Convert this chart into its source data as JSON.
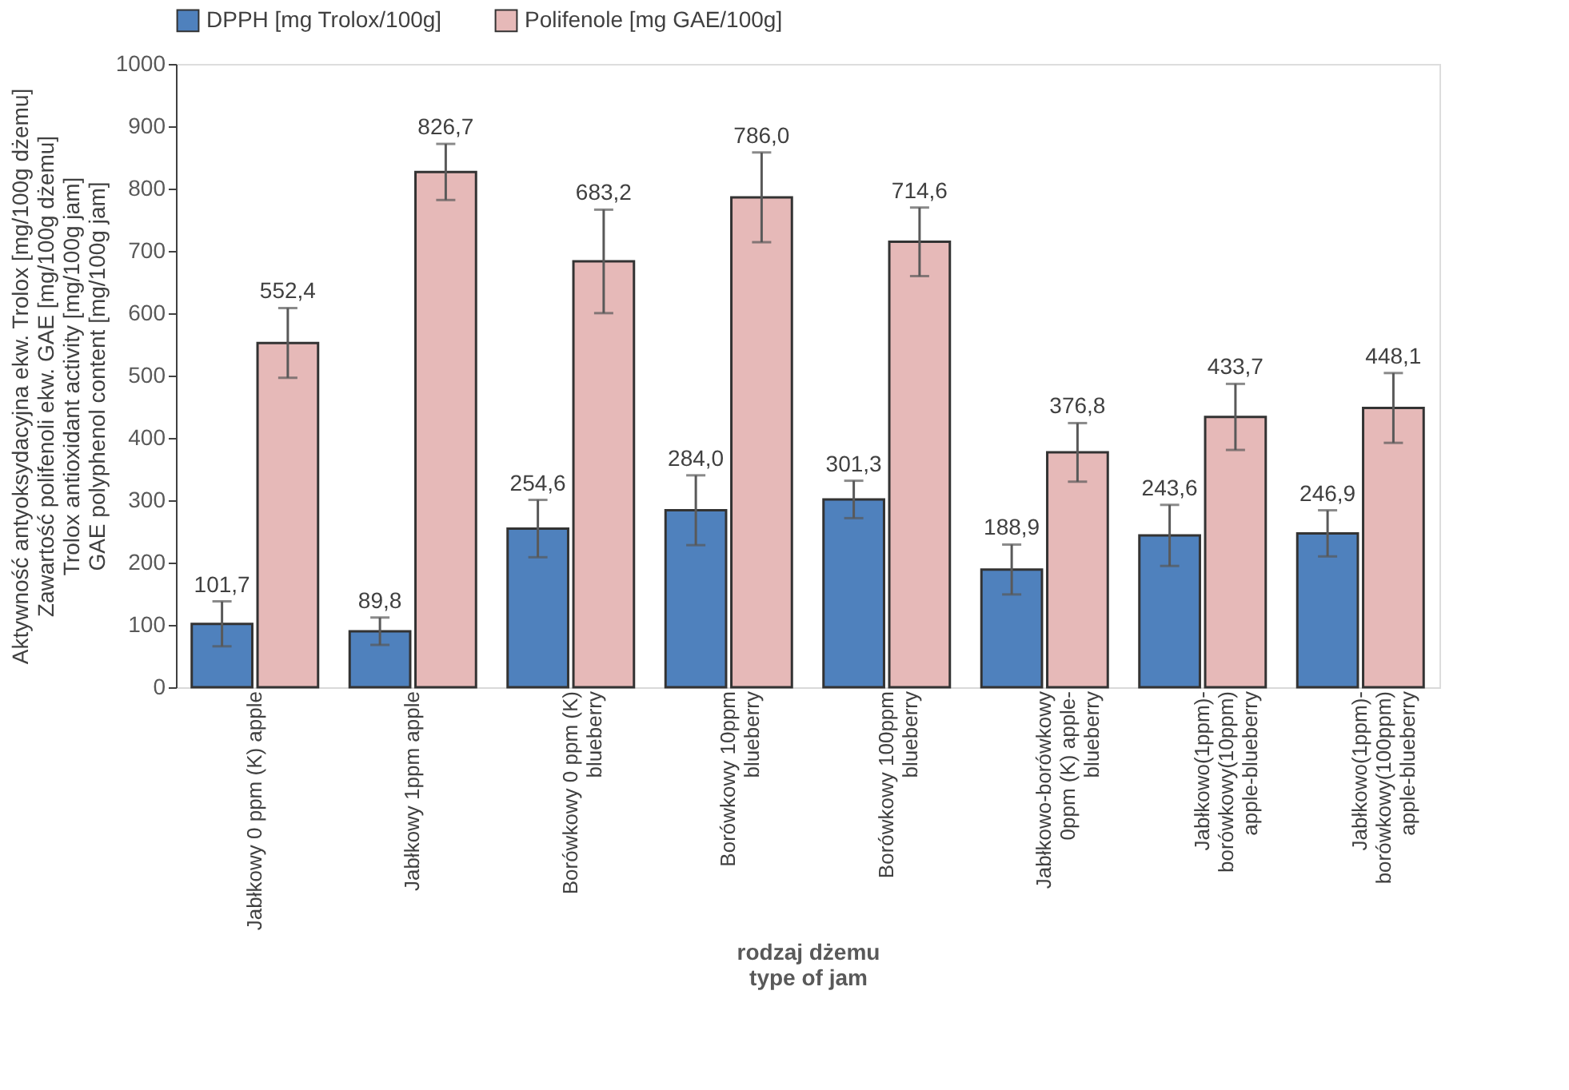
{
  "chart_data": {
    "type": "bar",
    "ylabel": [
      "Aktywność antyoksydacyjna ekw. Trolox [mg/100g dżemu]",
      "Zawartość polifenoli ekw. GAE [mg/100g dżemu]",
      "Trolox antioxidant activity [mg/100g jam]",
      "GAE polyphenol content [mg/100g jam]"
    ],
    "xlabel": [
      "rodzaj dżemu",
      "type of jam"
    ],
    "categories": [
      "Jabłkowy 0 ppm (K)  apple",
      "Jabłkowy 1ppm  apple",
      "Borówkowy 0 ppm (K)\nblueberry",
      "Borówkowy  10ppm\nblueberry",
      "Borówkowy 100ppm\nblueberry",
      "Jabłkowo-borówkowy\n0ppm (K)  apple-\nblueberry",
      "Jabłkowo(1ppm)-\nborówkowy(10ppm)\napple-blueberry",
      "Jabłkowo(1ppm)-\nborówkowy(100ppm)\napple-blueberry"
    ],
    "series": [
      {
        "name": "DPPH [mg Trolox/100g]",
        "color": "#4f81bd",
        "values": [
          101.7,
          89.8,
          254.6,
          284.0,
          301.3,
          188.9,
          243.6,
          246.9
        ],
        "value_labels": [
          "101,7",
          "89,8",
          "254,6",
          "284,0",
          "301,3",
          "188,9",
          "243,6",
          "246,9"
        ],
        "errors": [
          36,
          22,
          46,
          56,
          30,
          40,
          49,
          37
        ]
      },
      {
        "name": "Polifenole [mg GAE/100g]",
        "color": "#e6b9b8",
        "values": [
          552.4,
          826.7,
          683.2,
          786.0,
          714.6,
          376.8,
          433.7,
          448.1
        ],
        "value_labels": [
          "552,4",
          "826,7",
          "683,2",
          "786,0",
          "714,6",
          "376,8",
          "433,7",
          "448,1"
        ],
        "errors": [
          56,
          45,
          83,
          72,
          55,
          47,
          53,
          56
        ]
      }
    ],
    "ylim": [
      0,
      1000
    ],
    "yticks": [
      0,
      100,
      200,
      300,
      400,
      500,
      600,
      700,
      800,
      900,
      1000
    ],
    "grid": false,
    "legend": "top"
  }
}
